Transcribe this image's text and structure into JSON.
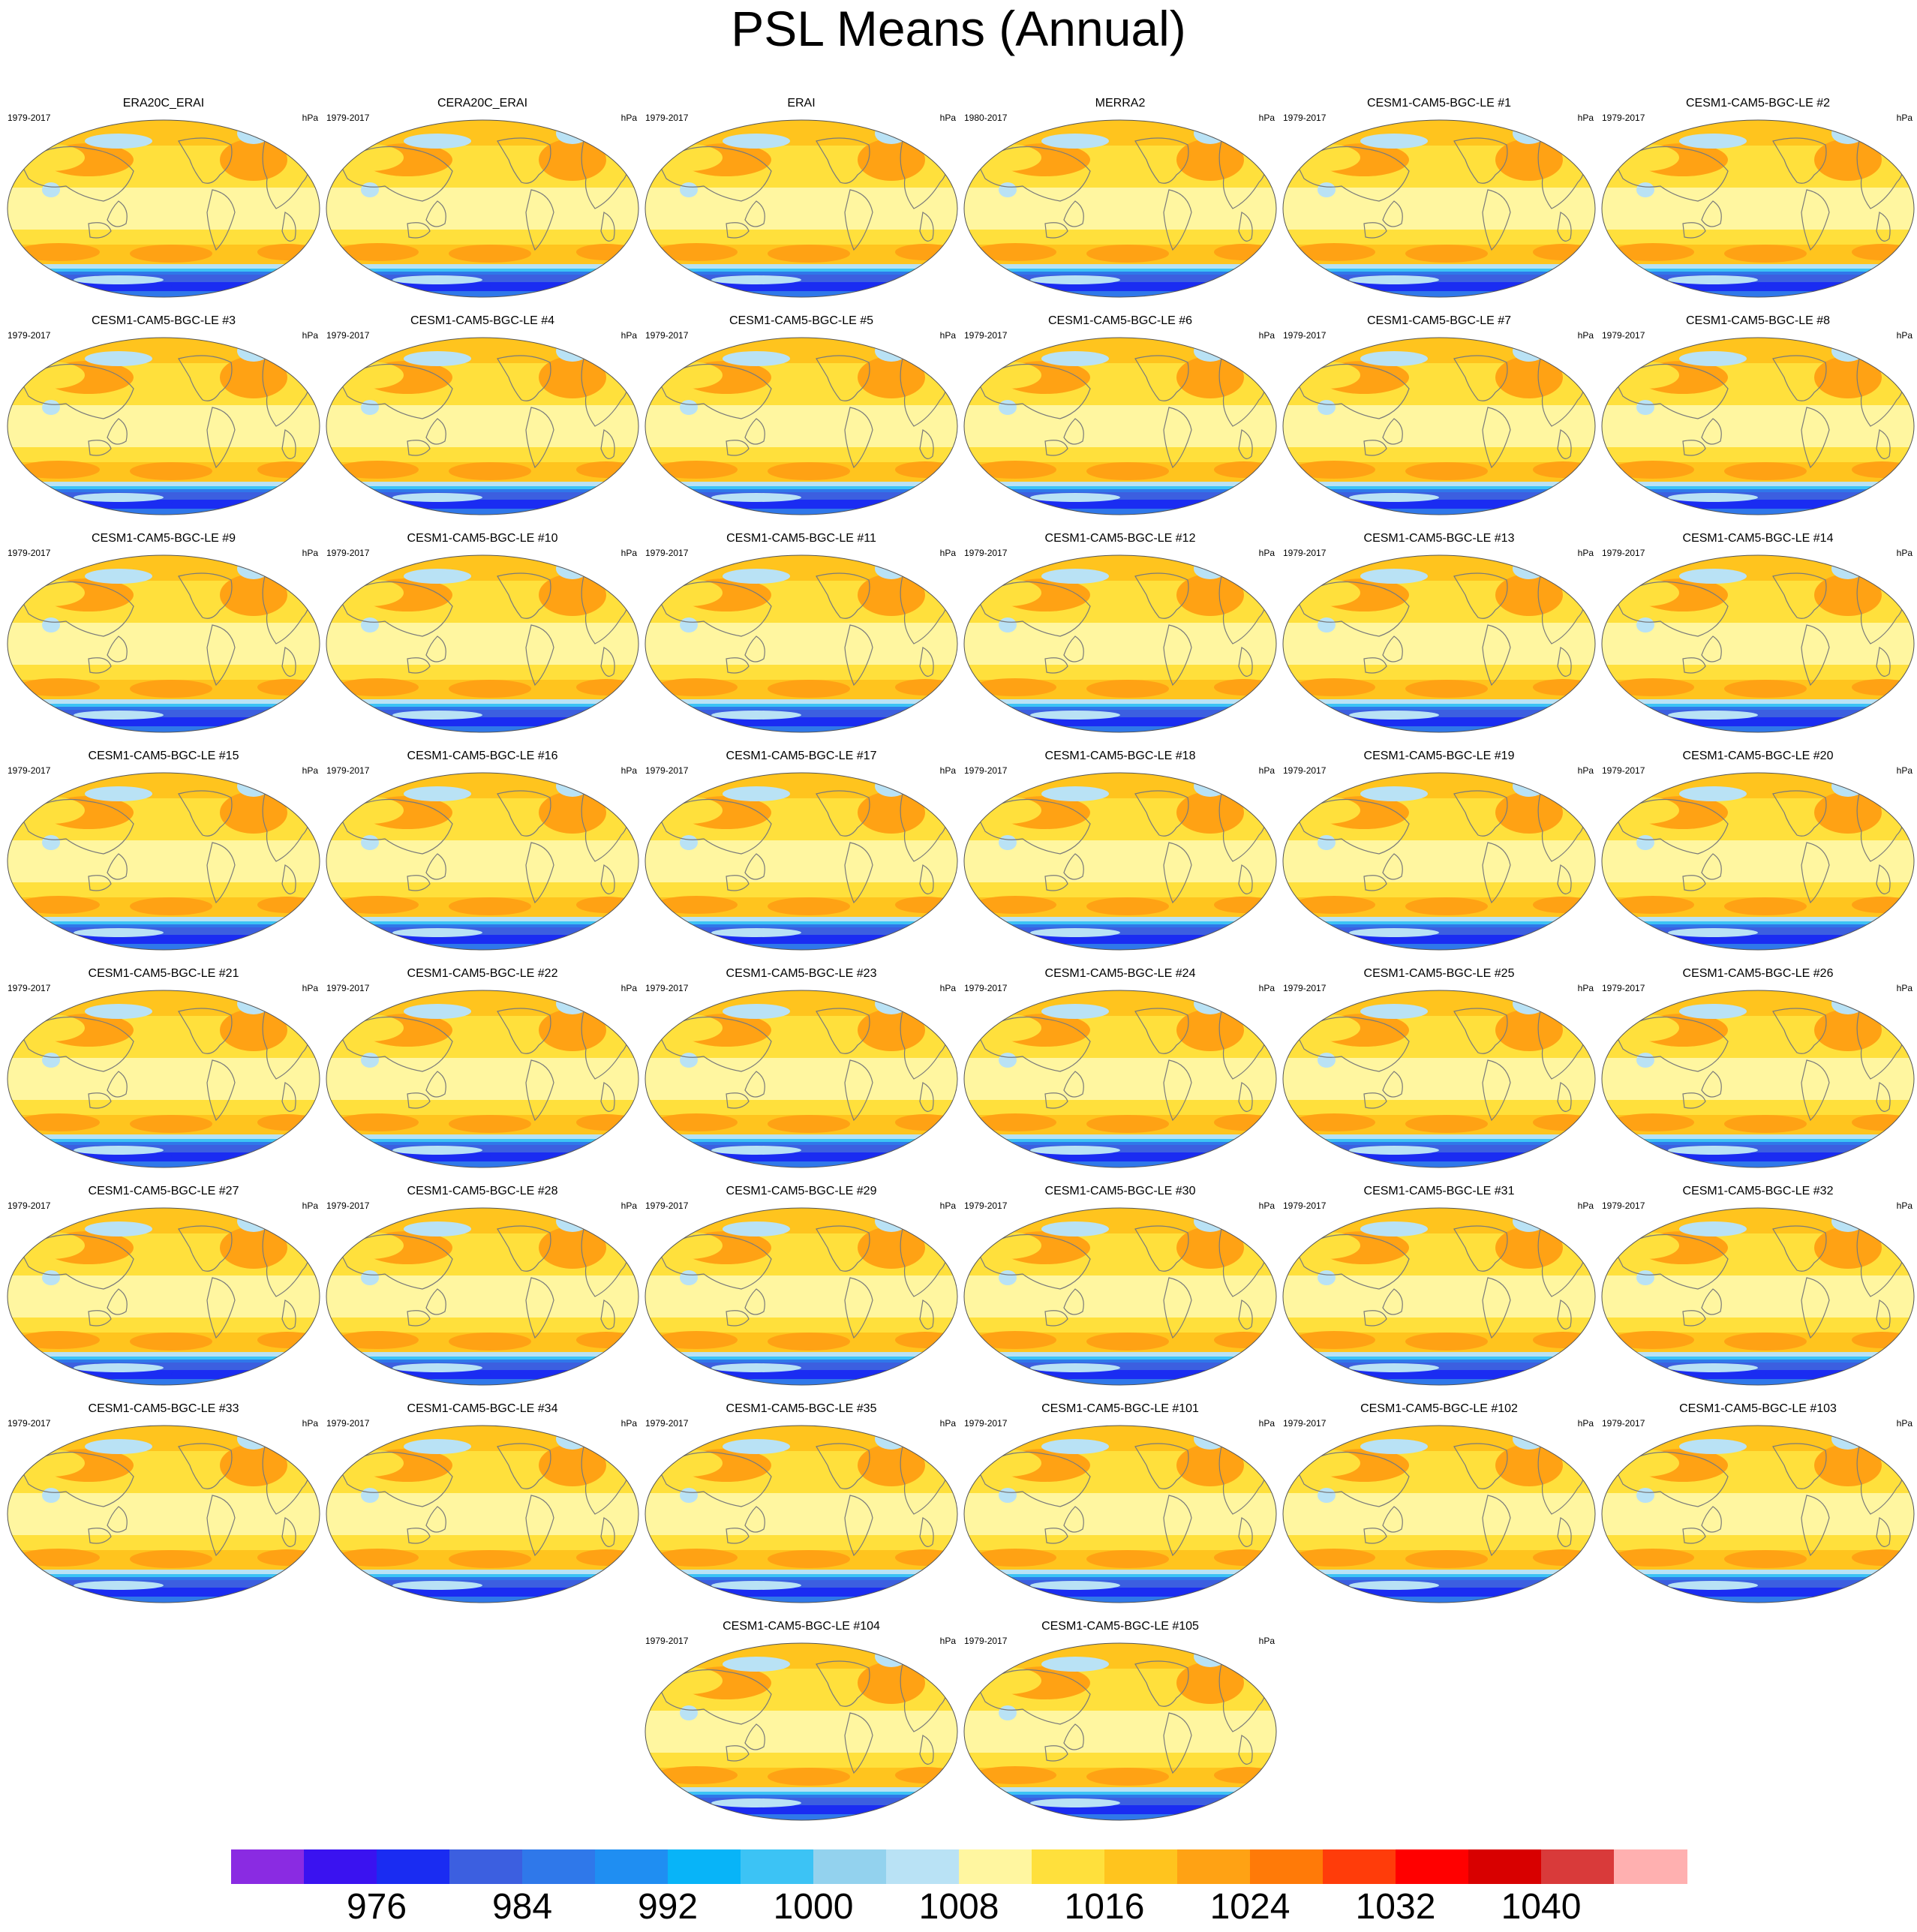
{
  "title": "PSL Means (Annual)",
  "units": "hPa",
  "panels": [
    {
      "title": "ERA20C_ERAI",
      "years": "1979-2017"
    },
    {
      "title": "CERA20C_ERAI",
      "years": "1979-2017"
    },
    {
      "title": "ERAI",
      "years": "1979-2017"
    },
    {
      "title": "MERRA2",
      "years": "1980-2017"
    },
    {
      "title": "CESM1-CAM5-BGC-LE #1",
      "years": "1979-2017"
    },
    {
      "title": "CESM1-CAM5-BGC-LE #2",
      "years": "1979-2017"
    },
    {
      "title": "CESM1-CAM5-BGC-LE #3",
      "years": "1979-2017"
    },
    {
      "title": "CESM1-CAM5-BGC-LE #4",
      "years": "1979-2017"
    },
    {
      "title": "CESM1-CAM5-BGC-LE #5",
      "years": "1979-2017"
    },
    {
      "title": "CESM1-CAM5-BGC-LE #6",
      "years": "1979-2017"
    },
    {
      "title": "CESM1-CAM5-BGC-LE #7",
      "years": "1979-2017"
    },
    {
      "title": "CESM1-CAM5-BGC-LE #8",
      "years": "1979-2017"
    },
    {
      "title": "CESM1-CAM5-BGC-LE #9",
      "years": "1979-2017"
    },
    {
      "title": "CESM1-CAM5-BGC-LE #10",
      "years": "1979-2017"
    },
    {
      "title": "CESM1-CAM5-BGC-LE #11",
      "years": "1979-2017"
    },
    {
      "title": "CESM1-CAM5-BGC-LE #12",
      "years": "1979-2017"
    },
    {
      "title": "CESM1-CAM5-BGC-LE #13",
      "years": "1979-2017"
    },
    {
      "title": "CESM1-CAM5-BGC-LE #14",
      "years": "1979-2017"
    },
    {
      "title": "CESM1-CAM5-BGC-LE #15",
      "years": "1979-2017"
    },
    {
      "title": "CESM1-CAM5-BGC-LE #16",
      "years": "1979-2017"
    },
    {
      "title": "CESM1-CAM5-BGC-LE #17",
      "years": "1979-2017"
    },
    {
      "title": "CESM1-CAM5-BGC-LE #18",
      "years": "1979-2017"
    },
    {
      "title": "CESM1-CAM5-BGC-LE #19",
      "years": "1979-2017"
    },
    {
      "title": "CESM1-CAM5-BGC-LE #20",
      "years": "1979-2017"
    },
    {
      "title": "CESM1-CAM5-BGC-LE #21",
      "years": "1979-2017"
    },
    {
      "title": "CESM1-CAM5-BGC-LE #22",
      "years": "1979-2017"
    },
    {
      "title": "CESM1-CAM5-BGC-LE #23",
      "years": "1979-2017"
    },
    {
      "title": "CESM1-CAM5-BGC-LE #24",
      "years": "1979-2017"
    },
    {
      "title": "CESM1-CAM5-BGC-LE #25",
      "years": "1979-2017"
    },
    {
      "title": "CESM1-CAM5-BGC-LE #26",
      "years": "1979-2017"
    },
    {
      "title": "CESM1-CAM5-BGC-LE #27",
      "years": "1979-2017"
    },
    {
      "title": "CESM1-CAM5-BGC-LE #28",
      "years": "1979-2017"
    },
    {
      "title": "CESM1-CAM5-BGC-LE #29",
      "years": "1979-2017"
    },
    {
      "title": "CESM1-CAM5-BGC-LE #30",
      "years": "1979-2017"
    },
    {
      "title": "CESM1-CAM5-BGC-LE #31",
      "years": "1979-2017"
    },
    {
      "title": "CESM1-CAM5-BGC-LE #32",
      "years": "1979-2017"
    },
    {
      "title": "CESM1-CAM5-BGC-LE #33",
      "years": "1979-2017"
    },
    {
      "title": "CESM1-CAM5-BGC-LE #34",
      "years": "1979-2017"
    },
    {
      "title": "CESM1-CAM5-BGC-LE #35",
      "years": "1979-2017"
    },
    {
      "title": "CESM1-CAM5-BGC-LE #101",
      "years": "1979-2017"
    },
    {
      "title": "CESM1-CAM5-BGC-LE #102",
      "years": "1979-2017"
    },
    {
      "title": "CESM1-CAM5-BGC-LE #103",
      "years": "1979-2017"
    },
    {
      "title": "CESM1-CAM5-BGC-LE #104",
      "years": "1979-2017"
    },
    {
      "title": "CESM1-CAM5-BGC-LE #105",
      "years": "1979-2017"
    }
  ],
  "colorbar": {
    "colors": [
      "#8a2be2",
      "#3a12f0",
      "#1a2cf2",
      "#3c5fe0",
      "#2f78ea",
      "#1f8ef2",
      "#08b4f8",
      "#3cc3f5",
      "#93d2ee",
      "#b9e2f5",
      "#fff6a0",
      "#ffe03c",
      "#ffc41e",
      "#ffa214",
      "#ff7a08",
      "#ff3c0a",
      "#ff0000",
      "#d80000",
      "#d93a3a",
      "#ffb0b0"
    ],
    "labels": [
      "976",
      "984",
      "992",
      "1000",
      "1008",
      "1016",
      "1024",
      "1032",
      "1040"
    ]
  }
}
